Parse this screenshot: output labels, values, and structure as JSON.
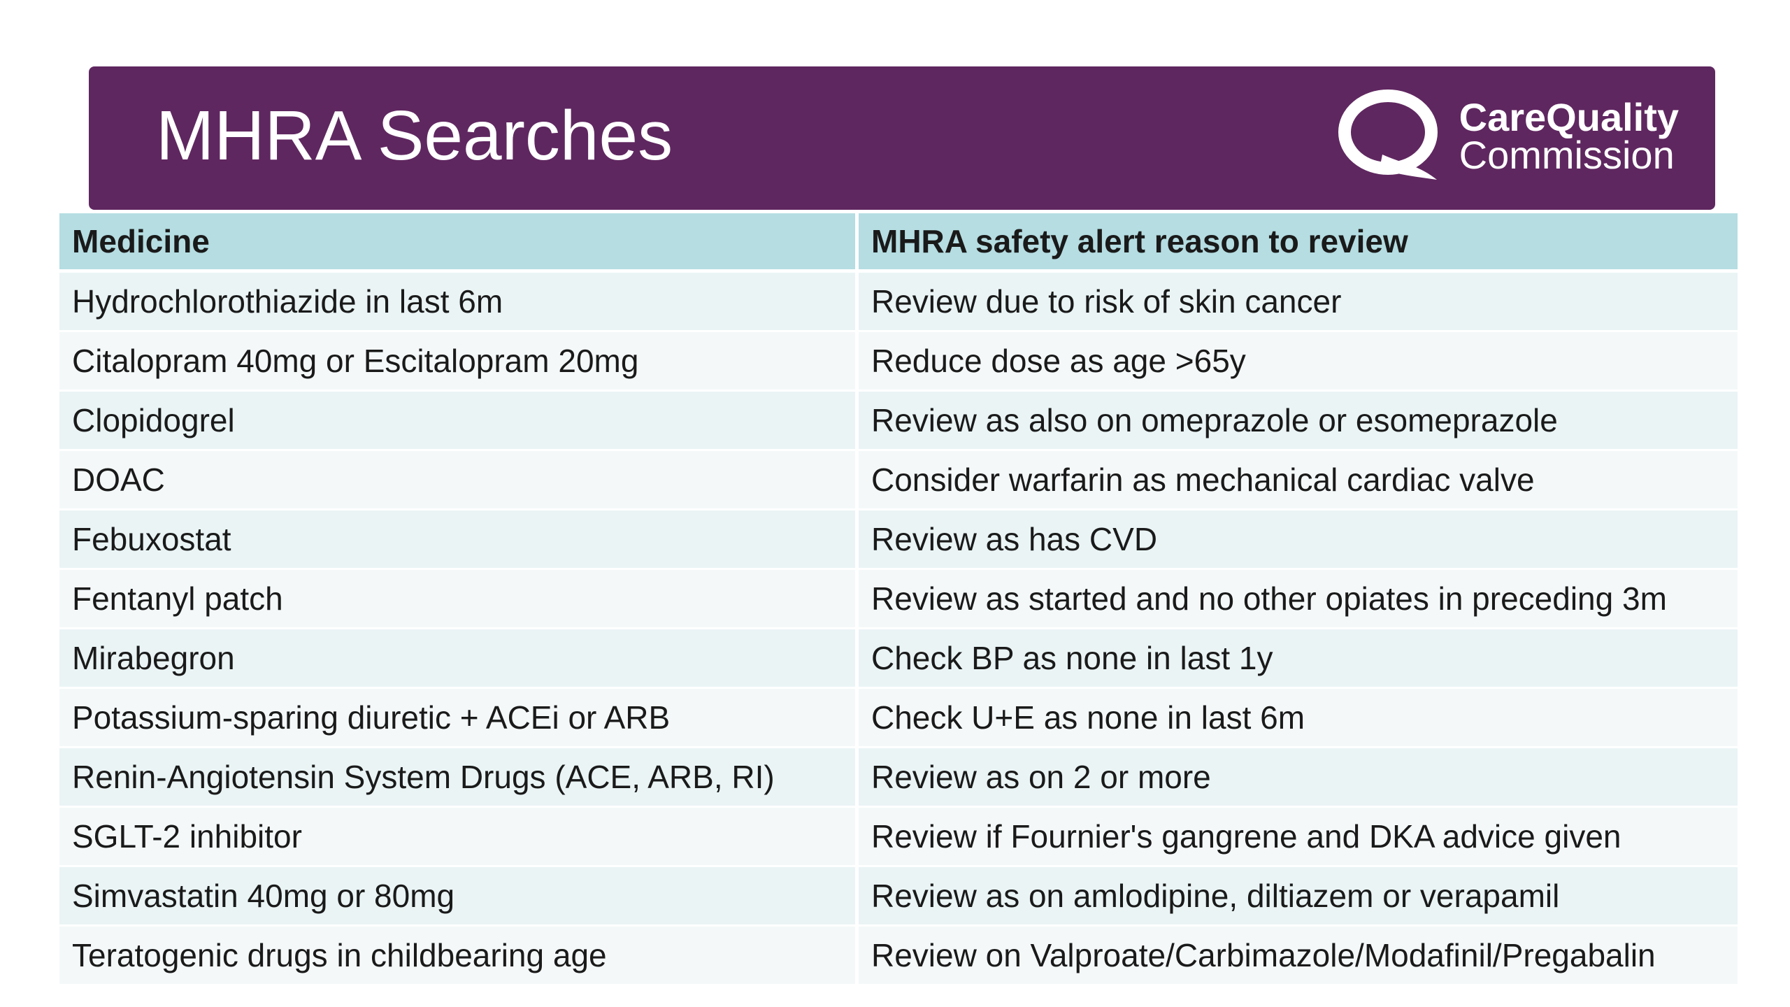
{
  "slide": {
    "title": "MHRA Searches",
    "logo": {
      "icon": "cqc-q-logo-icon",
      "line1": "CareQuality",
      "line2": "Commission"
    },
    "colors": {
      "banner": "#5f2760",
      "header_row": "#b5dde2",
      "row_light": "#eaf4f5",
      "row_lighter": "#f4f8f9"
    }
  },
  "table": {
    "headers": [
      "Medicine",
      "MHRA safety alert reason to review"
    ],
    "rows": [
      [
        "Hydrochlorothiazide in last 6m",
        "Review due to risk of skin cancer"
      ],
      [
        "Citalopram 40mg or Escitalopram 20mg",
        "Reduce dose as age >65y"
      ],
      [
        "Clopidogrel",
        "Review as also on omeprazole or esomeprazole"
      ],
      [
        "DOAC",
        "Consider warfarin as mechanical cardiac valve"
      ],
      [
        "Febuxostat",
        "Review as has CVD"
      ],
      [
        "Fentanyl patch",
        "Review as started and no other opiates in preceding 3m"
      ],
      [
        "Mirabegron",
        "Check BP as none in last 1y"
      ],
      [
        "Potassium-sparing diuretic + ACEi or ARB",
        "Check U+E as none in last 6m"
      ],
      [
        "Renin-Angiotensin System Drugs (ACE, ARB, RI)",
        "Review as on 2 or more"
      ],
      [
        "SGLT-2 inhibitor",
        "Review if Fournier's gangrene and DKA advice given"
      ],
      [
        "Simvastatin 40mg or 80mg",
        "Review as on amlodipine, diltiazem or verapamil"
      ],
      [
        "Teratogenic drugs in childbearing age",
        "Review on Valproate/Carbimazole/Modafinil/Pregabalin"
      ]
    ]
  }
}
